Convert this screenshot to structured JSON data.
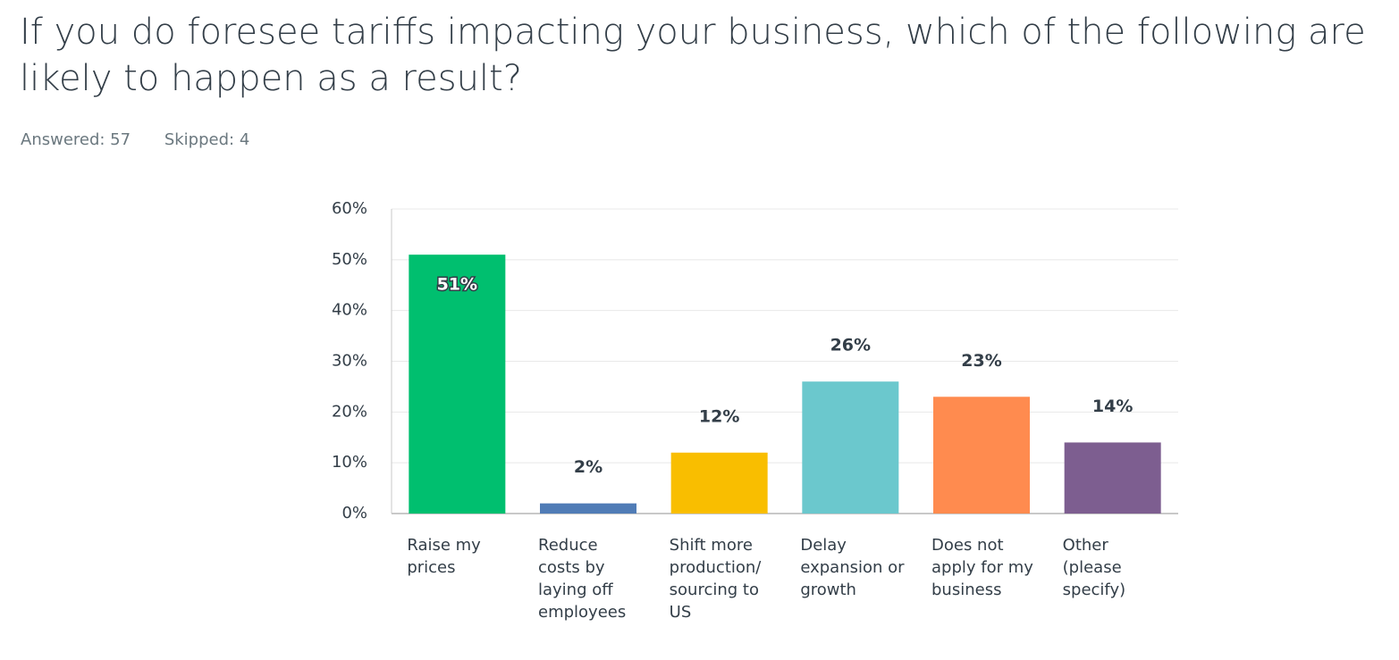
{
  "chart_data": {
    "type": "bar",
    "title": "If you do foresee tariffs impacting your business, which of the following are likely to happen as a result?",
    "annotations": [
      "Answered: 57",
      "Skipped: 4"
    ],
    "categories": [
      "Raise my prices",
      "Reduce costs by laying off employees",
      "Shift more production/ sourcing to US",
      "Delay expansion or growth",
      "Does not apply for my business",
      "Other (please specify)"
    ],
    "values": [
      51,
      2,
      12,
      26,
      23,
      14
    ],
    "value_labels": [
      "51%",
      "2%",
      "12%",
      "26%",
      "23%",
      "14%"
    ],
    "colors": [
      "#00bf6f",
      "#507cb6",
      "#f9be00",
      "#6bc8cd",
      "#ff8b4f",
      "#7d5e90"
    ],
    "ylim": [
      0,
      60
    ],
    "yticks": [
      {
        "value": 0,
        "label": "0%"
      },
      {
        "value": 10,
        "label": "10%"
      },
      {
        "value": 20,
        "label": "20%"
      },
      {
        "value": 30,
        "label": "30%"
      },
      {
        "value": 40,
        "label": "40%"
      },
      {
        "value": 50,
        "label": "50%"
      },
      {
        "value": 60,
        "label": "60%"
      }
    ],
    "grid": true
  }
}
